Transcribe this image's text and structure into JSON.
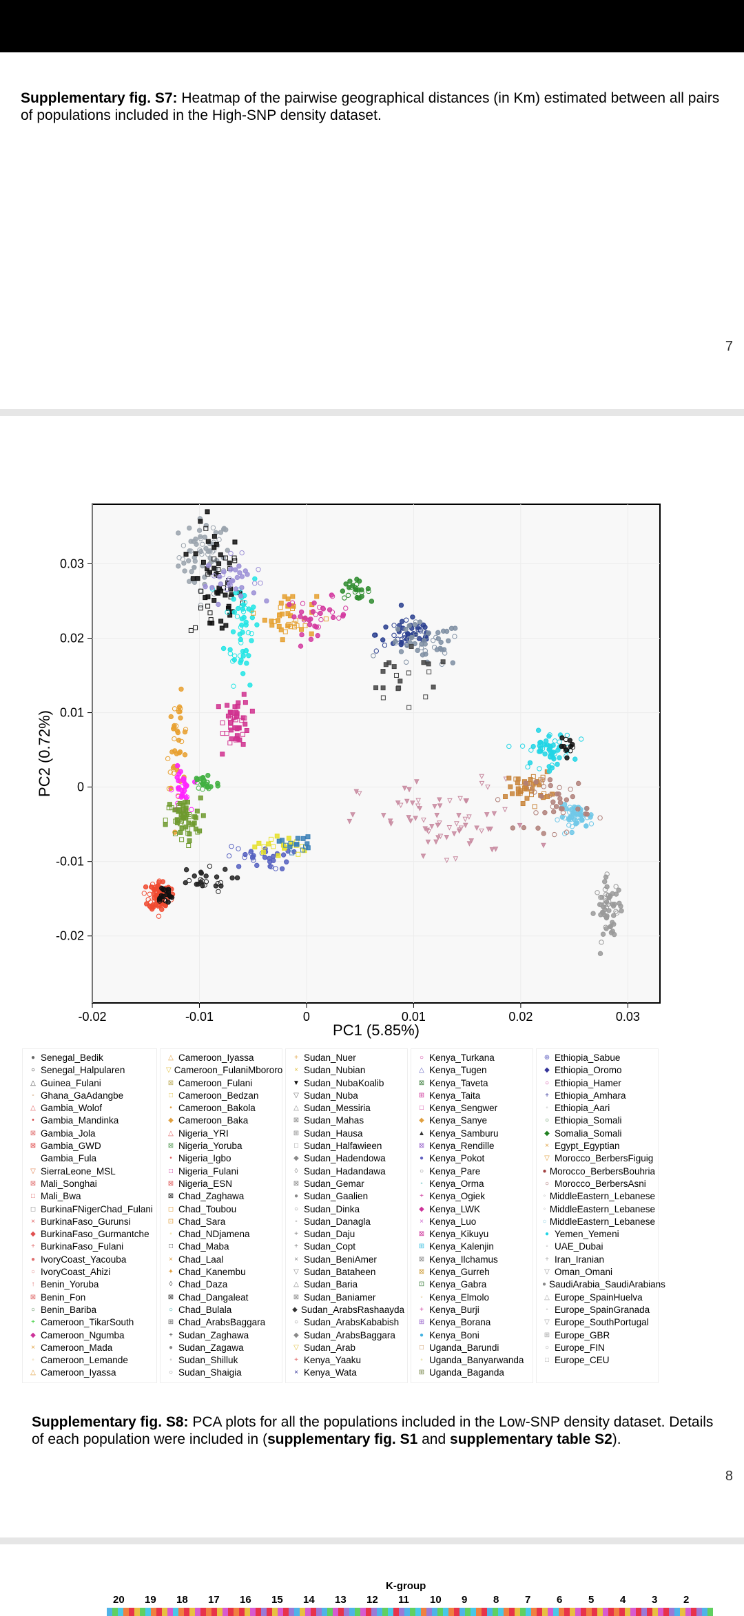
{
  "page7": {
    "caption_label": "Supplementary fig. S7:",
    "caption_text": " Heatmap of the pairwise geographical distances (in Km) estimated between all pairs of populations included in the High-SNP density dataset.",
    "page_number": "7"
  },
  "page8": {
    "caption_label": "Supplementary fig. S8:",
    "caption_text_1": " PCA plots for all the populations included in the Low-SNP density dataset. Details of each population were included in (",
    "caption_ref_1": "supplementary fig. S1",
    "caption_and": " and ",
    "caption_ref_2": "supplementary table S2",
    "caption_end": ").",
    "page_number": "8"
  },
  "chart_data": {
    "type": "scatter",
    "xlabel": "PC1 (5.85%)",
    "ylabel": "PC2 (0.72%)",
    "xlim": [
      -0.02,
      0.033
    ],
    "ylim": [
      -0.029,
      0.038
    ],
    "xticks": [
      -0.02,
      -0.01,
      0,
      0.01,
      0.02,
      0.03
    ],
    "xtick_labels": [
      "-0.02",
      "-0.01",
      "0",
      "0.01",
      "0.02",
      "0.03"
    ],
    "yticks": [
      -0.02,
      -0.01,
      0,
      0.01,
      0.02,
      0.03
    ],
    "ytick_labels": [
      "-0.02",
      "-0.01",
      "0",
      "0.01",
      "0.02",
      "0.03"
    ],
    "clusters": [
      {
        "color": "#9aa3ad",
        "cx": -0.0095,
        "cy": 0.031,
        "sx": 0.0012,
        "sy": 0.0025,
        "n": 70,
        "marker": "circle"
      },
      {
        "color": "#111111",
        "cx": -0.0085,
        "cy": 0.027,
        "sx": 0.0012,
        "sy": 0.004,
        "n": 60,
        "marker": "square"
      },
      {
        "color": "#22e5e5",
        "cx": -0.006,
        "cy": 0.022,
        "sx": 0.0008,
        "sy": 0.004,
        "n": 55,
        "marker": "circle"
      },
      {
        "color": "#9b8fd6",
        "cx": -0.007,
        "cy": 0.028,
        "sx": 0.0012,
        "sy": 0.0015,
        "n": 35,
        "marker": "circle"
      },
      {
        "color": "#e5a030",
        "cx": -0.0015,
        "cy": 0.023,
        "sx": 0.0012,
        "sy": 0.0015,
        "n": 40,
        "marker": "square"
      },
      {
        "color": "#d33aa0",
        "cx": 0.001,
        "cy": 0.023,
        "sx": 0.0015,
        "sy": 0.0012,
        "n": 35,
        "marker": "circle"
      },
      {
        "color": "#2e8b2e",
        "cx": 0.0045,
        "cy": 0.0265,
        "sx": 0.0007,
        "sy": 0.0006,
        "n": 25,
        "marker": "circle"
      },
      {
        "color": "#2a3f8f",
        "cx": 0.0095,
        "cy": 0.0205,
        "sx": 0.0015,
        "sy": 0.0012,
        "n": 50,
        "marker": "circle"
      },
      {
        "color": "#7f8fa3",
        "cx": 0.011,
        "cy": 0.019,
        "sx": 0.0018,
        "sy": 0.0015,
        "n": 50,
        "marker": "circle"
      },
      {
        "color": "#444444",
        "cx": 0.009,
        "cy": 0.014,
        "sx": 0.0025,
        "sy": 0.002,
        "n": 20,
        "marker": "square"
      },
      {
        "color": "#d0328f",
        "cx": -0.0065,
        "cy": 0.009,
        "sx": 0.0006,
        "sy": 0.0018,
        "n": 45,
        "marker": "square"
      },
      {
        "color": "#e8a030",
        "cx": -0.012,
        "cy": 0.006,
        "sx": 0.0005,
        "sy": 0.003,
        "n": 40,
        "marker": "circle"
      },
      {
        "color": "#ff22ff",
        "cx": -0.0117,
        "cy": -0.0005,
        "sx": 0.0004,
        "sy": 0.0015,
        "n": 30,
        "marker": "circle"
      },
      {
        "color": "#6e9a2e",
        "cx": -0.0115,
        "cy": -0.0045,
        "sx": 0.0008,
        "sy": 0.0015,
        "n": 55,
        "marker": "square"
      },
      {
        "color": "#42b042",
        "cx": -0.0095,
        "cy": 0.0005,
        "sx": 0.0007,
        "sy": 0.0008,
        "n": 25,
        "marker": "circle"
      },
      {
        "color": "#f04a30",
        "cx": -0.0137,
        "cy": -0.0145,
        "sx": 0.0005,
        "sy": 0.001,
        "n": 90,
        "marker": "circle"
      },
      {
        "color": "#111111",
        "cx": -0.0133,
        "cy": -0.0145,
        "sx": 0.0004,
        "sy": 0.0007,
        "n": 20,
        "marker": "circle"
      },
      {
        "color": "#222222",
        "cx": -0.01,
        "cy": -0.0125,
        "sx": 0.0015,
        "sy": 0.0008,
        "n": 25,
        "marker": "circle"
      },
      {
        "color": "#5560c0",
        "cx": -0.0045,
        "cy": -0.0095,
        "sx": 0.0015,
        "sy": 0.0008,
        "n": 30,
        "marker": "circle"
      },
      {
        "color": "#e6e02a",
        "cx": -0.0025,
        "cy": -0.008,
        "sx": 0.0012,
        "sy": 0.0008,
        "n": 20,
        "marker": "square"
      },
      {
        "color": "#3a7fb6",
        "cx": -0.001,
        "cy": -0.0075,
        "sx": 0.0008,
        "sy": 0.0006,
        "n": 15,
        "marker": "square"
      },
      {
        "color": "#c88aa0",
        "cx": 0.013,
        "cy": -0.005,
        "sx": 0.004,
        "sy": 0.003,
        "n": 70,
        "marker": "triangle"
      },
      {
        "color": "#c8843a",
        "cx": 0.0208,
        "cy": 0.0,
        "sx": 0.001,
        "sy": 0.001,
        "n": 40,
        "marker": "square"
      },
      {
        "color": "#22d5e5",
        "cx": 0.0225,
        "cy": 0.005,
        "sx": 0.0012,
        "sy": 0.0012,
        "n": 55,
        "marker": "circle"
      },
      {
        "color": "#111111",
        "cx": 0.0245,
        "cy": 0.0055,
        "sx": 0.0004,
        "sy": 0.0005,
        "n": 12,
        "marker": "circle"
      },
      {
        "color": "#70c8e8",
        "cx": 0.0252,
        "cy": -0.004,
        "sx": 0.0008,
        "sy": 0.0008,
        "n": 50,
        "marker": "circle"
      },
      {
        "color": "#b0807a",
        "cx": 0.0235,
        "cy": -0.002,
        "sx": 0.0015,
        "sy": 0.002,
        "n": 40,
        "marker": "circle"
      },
      {
        "color": "#9a9a9a",
        "cx": 0.0282,
        "cy": -0.0165,
        "sx": 0.0006,
        "sy": 0.002,
        "n": 60,
        "marker": "circle"
      }
    ]
  },
  "legend": [
    [
      {
        "label": "Senegal_Bedik",
        "color": "#666666",
        "sym": "●"
      },
      {
        "label": "Senegal_Halpularen",
        "color": "#222222",
        "sym": "○"
      },
      {
        "label": "Guinea_Fulani",
        "color": "#444444",
        "sym": "△"
      },
      {
        "label": "Ghana_GaAdangbe",
        "color": "#cc9966",
        "sym": "◦"
      },
      {
        "label": "Gambia_Wolof",
        "color": "#e06060",
        "sym": "△"
      },
      {
        "label": "Gambia_Mandinka",
        "color": "#d04040",
        "sym": "•"
      },
      {
        "label": "Gambia_Jola",
        "color": "#e07070",
        "sym": "⊠"
      },
      {
        "label": "Gambia_GWD",
        "color": "#e05050",
        "sym": "⊠"
      },
      {
        "label": "Gambia_Fula",
        "color": "#ffffff",
        "sym": " "
      },
      {
        "label": "SierraLeone_MSL",
        "color": "#e08050",
        "sym": "▽"
      },
      {
        "label": "Mali_Songhai",
        "color": "#e07070",
        "sym": "⊠"
      },
      {
        "label": "Mali_Bwa",
        "color": "#e07070",
        "sym": "□"
      },
      {
        "label": "BurkinaFNigerChad_Fulani",
        "color": "#999999",
        "sym": "◻"
      },
      {
        "label": "BurkinaFaso_Gurunsi",
        "color": "#e06060",
        "sym": "×"
      },
      {
        "label": "BurkinaFaso_Gurmantche",
        "color": "#e05050",
        "sym": "◆"
      },
      {
        "label": "BurkinaFaso_Fulani",
        "color": "#e07070",
        "sym": "+"
      },
      {
        "label": "IvoryCoast_Yacouba",
        "color": "#e07070",
        "sym": "●"
      },
      {
        "label": "IvoryCoast_Ahizi",
        "color": "#e09090",
        "sym": "○"
      },
      {
        "label": "Benin_Yoruba",
        "color": "#e07070",
        "sym": "↑"
      },
      {
        "label": "Benin_Fon",
        "color": "#e07070",
        "sym": "⊠"
      },
      {
        "label": "Benin_Bariba",
        "color": "#5a8a5a",
        "sym": "○"
      },
      {
        "label": "Cameroon_TikarSouth",
        "color": "#33cc33",
        "sym": "+"
      },
      {
        "label": "Cameroon_Ngumba",
        "color": "#cc3399",
        "sym": "◆"
      },
      {
        "label": "Cameroon_Mada",
        "color": "#e0a040",
        "sym": "×"
      },
      {
        "label": "Cameroon_Lemande",
        "color": "#e0c080",
        "sym": "◦"
      },
      {
        "label": "Cameroon_Iyassa",
        "color": "#e0a040",
        "sym": "△"
      }
    ],
    [
      {
        "label": "Cameroon_Iyassa",
        "color": "#e0a040",
        "sym": "△"
      },
      {
        "label": "Cameroon_FulaniMbororo",
        "color": "#e0c040",
        "sym": "▽"
      },
      {
        "label": "Cameroon_Fulani",
        "color": "#c0b060",
        "sym": "⊠"
      },
      {
        "label": "Cameroon_Bedzan",
        "color": "#e0c040",
        "sym": "□"
      },
      {
        "label": "Cameroon_Bakola",
        "color": "#e0a040",
        "sym": "•"
      },
      {
        "label": "Cameroon_Baka",
        "color": "#e0a040",
        "sym": "◆"
      },
      {
        "label": "Nigeria_YRI",
        "color": "#e06060",
        "sym": "△"
      },
      {
        "label": "Nigeria_Yoruba",
        "color": "#60a060",
        "sym": "⊠"
      },
      {
        "label": "Nigeria_Igbo",
        "color": "#e06060",
        "sym": "•"
      },
      {
        "label": "Nigeria_Fulani",
        "color": "#cc3399",
        "sym": "□"
      },
      {
        "label": "Nigeria_ESN",
        "color": "#e06060",
        "sym": "⊠"
      },
      {
        "label": "Chad_Zaghawa",
        "color": "#222222",
        "sym": "⊠"
      },
      {
        "label": "Chad_Toubou",
        "color": "#e0a040",
        "sym": "◻"
      },
      {
        "label": "Chad_Sara",
        "color": "#e0a040",
        "sym": "⊡"
      },
      {
        "label": "Chad_NDjamena",
        "color": "#e0c040",
        "sym": "◦"
      },
      {
        "label": "Chad_Maba",
        "color": "#444444",
        "sym": "□"
      },
      {
        "label": "Chad_Laal",
        "color": "#e0a040",
        "sym": "×"
      },
      {
        "label": "Chad_Kanembu",
        "color": "#e0a040",
        "sym": "✦"
      },
      {
        "label": "Chad_Daza",
        "color": "#444444",
        "sym": "◊"
      },
      {
        "label": "Chad_Dangaleat",
        "color": "#333333",
        "sym": "⊠"
      },
      {
        "label": "Chad_Bulala",
        "color": "#40b0b0",
        "sym": "○"
      },
      {
        "label": "Chad_ArabsBaggara",
        "color": "#666666",
        "sym": "⊞"
      },
      {
        "label": "Sudan_Zaghawa",
        "color": "#444444",
        "sym": "+"
      },
      {
        "label": "Sudan_Zagawa",
        "color": "#888888",
        "sym": "●"
      },
      {
        "label": "Sudan_Shilluk",
        "color": "#888888",
        "sym": "◦"
      },
      {
        "label": "Sudan_Shaigia",
        "color": "#888888",
        "sym": "○"
      }
    ],
    [
      {
        "label": "Sudan_Nuer",
        "color": "#e0a040",
        "sym": "+"
      },
      {
        "label": "Sudan_Nubian",
        "color": "#e0c040",
        "sym": "×"
      },
      {
        "label": "Sudan_NubaKoalib",
        "color": "#111111",
        "sym": "▼"
      },
      {
        "label": "Sudan_Nuba",
        "color": "#666666",
        "sym": "▽"
      },
      {
        "label": "Sudan_Messiria",
        "color": "#888888",
        "sym": "△"
      },
      {
        "label": "Sudan_Mahas",
        "color": "#888888",
        "sym": "⊠"
      },
      {
        "label": "Sudan_Hausa",
        "color": "#888888",
        "sym": "⊞"
      },
      {
        "label": "Sudan_Halfawieen",
        "color": "#888888",
        "sym": "□"
      },
      {
        "label": "Sudan_Hadendowa",
        "color": "#888888",
        "sym": "◆"
      },
      {
        "label": "Sudan_Hadandawa",
        "color": "#888888",
        "sym": "◊"
      },
      {
        "label": "Sudan_Gemar",
        "color": "#888888",
        "sym": "⊠"
      },
      {
        "label": "Sudan_Gaalien",
        "color": "#888888",
        "sym": "●"
      },
      {
        "label": "Sudan_Dinka",
        "color": "#888888",
        "sym": "○"
      },
      {
        "label": "Sudan_Danagla",
        "color": "#888888",
        "sym": "◦"
      },
      {
        "label": "Sudan_Daju",
        "color": "#888888",
        "sym": "+"
      },
      {
        "label": "Sudan_Copt",
        "color": "#888888",
        "sym": "+"
      },
      {
        "label": "Sudan_BeniAmer",
        "color": "#888888",
        "sym": "×"
      },
      {
        "label": "Sudan_Bataheen",
        "color": "#888888",
        "sym": "▽"
      },
      {
        "label": "Sudan_Baria",
        "color": "#888888",
        "sym": "△"
      },
      {
        "label": "Sudan_Baniamer",
        "color": "#888888",
        "sym": "⊠"
      },
      {
        "label": "Sudan_ArabsRashaayda",
        "color": "#333333",
        "sym": "◆"
      },
      {
        "label": "Sudan_ArabsKababish",
        "color": "#888888",
        "sym": "○"
      },
      {
        "label": "Sudan_ArabsBaggara",
        "color": "#888888",
        "sym": "◆"
      },
      {
        "label": "Sudan_Arab",
        "color": "#e0c040",
        "sym": "▽"
      },
      {
        "label": "Kenya_Yaaku",
        "color": "#e06060",
        "sym": "+"
      },
      {
        "label": "Kenya_Wata",
        "color": "#333399",
        "sym": "×"
      }
    ],
    [
      {
        "label": "Kenya_Turkana",
        "color": "#cc3399",
        "sym": "○"
      },
      {
        "label": "Kenya_Tugen",
        "color": "#6060c0",
        "sym": "△"
      },
      {
        "label": "Kenya_Taveta",
        "color": "#408040",
        "sym": "⊠"
      },
      {
        "label": "Kenya_Taita",
        "color": "#cc3399",
        "sym": "⊞"
      },
      {
        "label": "Kenya_Sengwer",
        "color": "#cc3399",
        "sym": "□"
      },
      {
        "label": "Kenya_Sanye",
        "color": "#e0a040",
        "sym": "◆"
      },
      {
        "label": "Kenya_Samburu",
        "color": "#333333",
        "sym": "▲"
      },
      {
        "label": "Kenya_Rendille",
        "color": "#9966cc",
        "sym": "⊠"
      },
      {
        "label": "Kenya_Pokot",
        "color": "#6060c0",
        "sym": "●"
      },
      {
        "label": "Kenya_Pare",
        "color": "#808080",
        "sym": "○"
      },
      {
        "label": "Kenya_Orma",
        "color": "#40b0b0",
        "sym": "◦"
      },
      {
        "label": "Kenya_Ogiek",
        "color": "#cc3399",
        "sym": "+"
      },
      {
        "label": "Kenya_LWK",
        "color": "#cc3399",
        "sym": "◆"
      },
      {
        "label": "Kenya_Luo",
        "color": "#cc66cc",
        "sym": "×"
      },
      {
        "label": "Kenya_Kikuyu",
        "color": "#cc3399",
        "sym": "⊠"
      },
      {
        "label": "Kenya_Kalenjin",
        "color": "#40c0e0",
        "sym": "⊞"
      },
      {
        "label": "Kenya_Ilchamus",
        "color": "#888888",
        "sym": "⊠"
      },
      {
        "label": "Kenya_Gurreh",
        "color": "#d0a040",
        "sym": "⊠"
      },
      {
        "label": "Kenya_Gabra",
        "color": "#408040",
        "sym": "⊡"
      },
      {
        "label": "Kenya_Elmolo",
        "color": "#e0c080",
        "sym": "◦"
      },
      {
        "label": "Kenya_Burji",
        "color": "#cc3399",
        "sym": "+"
      },
      {
        "label": "Kenya_Borana",
        "color": "#9966cc",
        "sym": "⊞"
      },
      {
        "label": "Kenya_Boni",
        "color": "#40b0e0",
        "sym": "●"
      },
      {
        "label": "Uganda_Barundi",
        "color": "#c08040",
        "sym": "□"
      },
      {
        "label": "Uganda_Banyarwanda",
        "color": "#d0c040",
        "sym": "◦"
      },
      {
        "label": "Uganda_Baganda",
        "color": "#708040",
        "sym": "⊞"
      }
    ],
    [
      {
        "label": "Ethiopia_Sabue",
        "color": "#6060c0",
        "sym": "⊕"
      },
      {
        "label": "Ethiopia_Oromo",
        "color": "#333399",
        "sym": "◆"
      },
      {
        "label": "Ethiopia_Hamer",
        "color": "#cc3399",
        "sym": "○"
      },
      {
        "label": "Ethiopia_Amhara",
        "color": "#333399",
        "sym": "+"
      },
      {
        "label": "Ethiopia_Aari",
        "color": "#aaaaaa",
        "sym": "◦"
      },
      {
        "label": "Ethiopia_Somali",
        "color": "#408040",
        "sym": "○"
      },
      {
        "label": "Somalia_Somali",
        "color": "#208020",
        "sym": "◆"
      },
      {
        "label": "Egypt_Egyptian",
        "color": "#e0a040",
        "sym": "×"
      },
      {
        "label": "Morocco_BerbersFiguig",
        "color": "#e0a040",
        "sym": "▽"
      },
      {
        "label": "Morocco_BerbersBouhria",
        "color": "#a04040",
        "sym": "●"
      },
      {
        "label": "Morocco_BerbersAsni",
        "color": "#a06060",
        "sym": "○"
      },
      {
        "label": "MiddleEastern_Lebanese",
        "color": "#aaaaaa",
        "sym": "◦"
      },
      {
        "label": "MiddleEastern_Lebanese",
        "color": "#aaaaaa",
        "sym": "◦"
      },
      {
        "label": "MiddleEastern_Lebanese",
        "color": "#88ccdd",
        "sym": "○"
      },
      {
        "label": "Yemen_Yemeni",
        "color": "#22d5e5",
        "sym": "●"
      },
      {
        "label": "UAE_Dubai",
        "color": "#aaaaaa",
        "sym": "◦"
      },
      {
        "label": "Iran_Iranian",
        "color": "#aaaaaa",
        "sym": "+"
      },
      {
        "label": "Oman_Omani",
        "color": "#999999",
        "sym": "▽"
      },
      {
        "label": "SaudiArabia_SaudiArabians",
        "color": "#888888",
        "sym": "●"
      },
      {
        "label": "Europe_SpainHuelva",
        "color": "#aaaaaa",
        "sym": "△"
      },
      {
        "label": "Europe_SpainGranada",
        "color": "#aaaaaa",
        "sym": "◦"
      },
      {
        "label": "Europe_SouthPortugal",
        "color": "#aaaaaa",
        "sym": "▽"
      },
      {
        "label": "Europe_GBR",
        "color": "#aaaaaa",
        "sym": "⊞"
      },
      {
        "label": "Europe_FIN",
        "color": "#aaaaaa",
        "sym": "○"
      },
      {
        "label": "Europe_CEU",
        "color": "#aaaaaa",
        "sym": "□"
      }
    ]
  ],
  "kgroup": {
    "title": "K-group",
    "numbers": [
      "20",
      "19",
      "18",
      "17",
      "16",
      "15",
      "14",
      "13",
      "12",
      "11",
      "10",
      "9",
      "8",
      "7",
      "6",
      "5",
      "4",
      "3",
      "2"
    ],
    "strip_colors": [
      "#4fb3e8",
      "#e8334a",
      "#9a7ad6",
      "#f08040",
      "#e8334a",
      "#48c8e8",
      "#d85ad0",
      "#60d060",
      "#e8c040"
    ]
  }
}
